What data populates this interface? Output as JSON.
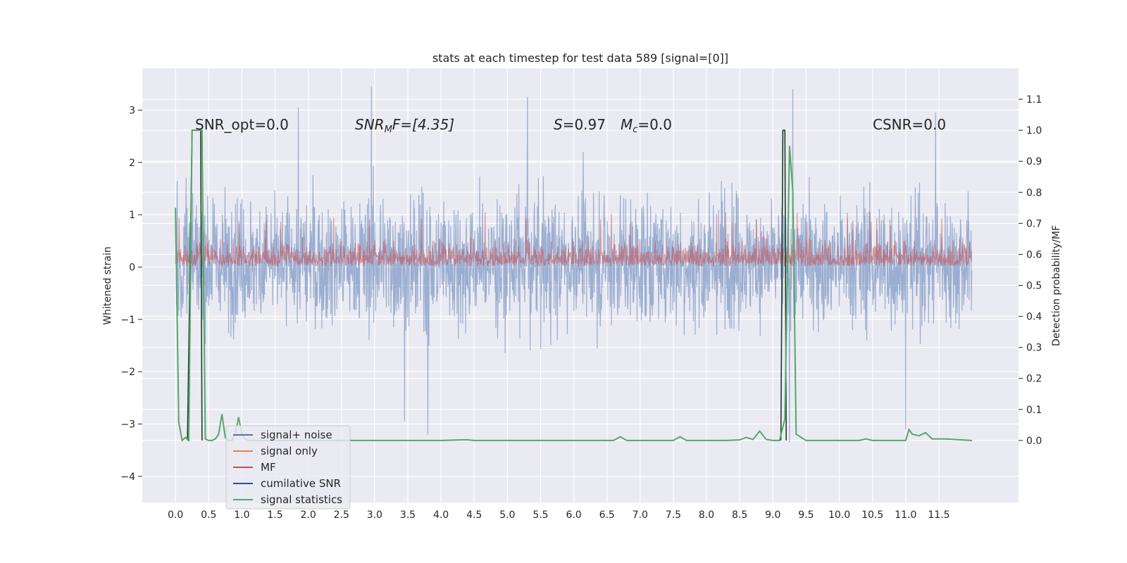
{
  "chart_data": {
    "type": "line",
    "title": "stats at each timestep for test data 589 [signal=[0]]",
    "xlabel": "",
    "ylabel": "Whitened strain",
    "ylabel_right": "Detection probability/MF",
    "xlim": [
      -0.5,
      12.7
    ],
    "ylim": [
      -4.5,
      3.8
    ],
    "ylim_right": [
      -0.2,
      1.2
    ],
    "x_ticks": [
      "0.0",
      "0.5",
      "1.0",
      "1.5",
      "2.0",
      "2.5",
      "3.0",
      "3.5",
      "4.0",
      "4.5",
      "5.0",
      "5.5",
      "6.0",
      "6.5",
      "7.0",
      "7.5",
      "8.0",
      "8.5",
      "9.0",
      "9.5",
      "10.0",
      "10.5",
      "11.0",
      "11.5"
    ],
    "y_ticks": [
      "3",
      "2",
      "1",
      "0",
      "−1",
      "−2",
      "−3",
      "−4"
    ],
    "y_ticks_right": [
      "1.1",
      "1.0",
      "0.9",
      "0.8",
      "0.7",
      "0.6",
      "0.5",
      "0.4",
      "0.3",
      "0.2",
      "0.1",
      "0.0"
    ],
    "grid": true,
    "legend_position": "lower-left",
    "annotations": {
      "snr_opt": "SNR_opt=0.0",
      "snr_mf_base": "SNR",
      "snr_mf_sub": "M",
      "snr_mf_rest": "F=[4.35]",
      "s_label": "S",
      "s_value": "=0.97",
      "mc_label": "M",
      "mc_sub": "c",
      "mc_value": "=0.0",
      "csnr": "CSNR=0.0"
    },
    "legend": [
      {
        "label": "signal+ noise",
        "color": "#4c72b0"
      },
      {
        "label": "signal only",
        "color": "#dd8452"
      },
      {
        "label": "MF",
        "color": "#c44e52"
      },
      {
        "label": "cumilative SNR",
        "color": "#2b4f9a"
      },
      {
        "label": "signal statistics",
        "color": "#55a868"
      }
    ],
    "series": [
      {
        "name": "signal+ noise",
        "axis": "left",
        "description": "dense noise trace between about -3.3 and 3.4",
        "x_range": [
          0.0,
          12.0
        ],
        "envelope_upper": 2.2,
        "envelope_lower": -1.9,
        "peaks": [
          {
            "x": 2.95,
            "y": 3.45
          },
          {
            "x": 9.3,
            "y": 3.4
          },
          {
            "x": 5.3,
            "y": 3.25
          },
          {
            "x": 1.85,
            "y": 3.05
          },
          {
            "x": 11.45,
            "y": 2.95
          },
          {
            "x": 9.25,
            "y": -3.35
          },
          {
            "x": 3.8,
            "y": -3.2
          },
          {
            "x": 11.0,
            "y": -3.1
          },
          {
            "x": 3.45,
            "y": -2.95
          }
        ]
      },
      {
        "name": "MF",
        "axis": "left",
        "description": "positive band from 0 to about 1",
        "x_range": [
          0.0,
          12.0
        ],
        "envelope_upper": 0.75,
        "peak": 1.05
      },
      {
        "name": "signal statistics",
        "axis": "right",
        "x": [
          0.0,
          0.05,
          0.1,
          0.15,
          0.2,
          0.25,
          0.3,
          0.35,
          0.4,
          0.45,
          0.5,
          0.55,
          0.6,
          0.65,
          0.7,
          0.75,
          0.8,
          0.85,
          0.9,
          0.95,
          1.0,
          1.05,
          1.1,
          1.2,
          1.4,
          1.6,
          1.8,
          2.0,
          2.5,
          3.0,
          3.5,
          4.0,
          4.3,
          4.4,
          4.5,
          5.0,
          5.5,
          6.0,
          6.5,
          6.6,
          6.7,
          6.8,
          7.0,
          7.5,
          7.6,
          7.7,
          8.0,
          8.3,
          8.5,
          8.6,
          8.7,
          8.8,
          8.9,
          9.0,
          9.1,
          9.18,
          9.25,
          9.3,
          9.35,
          9.5,
          10.0,
          10.3,
          10.4,
          10.5,
          11.0,
          11.05,
          11.1,
          11.2,
          11.3,
          11.4,
          11.6,
          12.0
        ],
        "y": [
          0.75,
          0.06,
          0.0,
          0.01,
          0.0,
          1.0,
          1.0,
          1.0,
          1.0,
          0.005,
          0.0,
          0.0,
          0.005,
          0.02,
          0.085,
          0.01,
          0.0,
          0.0,
          0.02,
          0.075,
          0.02,
          0.005,
          0.0,
          0.0,
          0.0,
          0.0,
          0.0,
          0.0,
          0.0,
          0.0,
          0.0,
          0.0,
          0.002,
          0.002,
          0.0,
          0.0,
          0.0,
          0.0,
          0.0,
          0.0,
          0.012,
          0.0,
          0.0,
          0.0,
          0.012,
          0.0,
          0.0,
          0.0,
          0.002,
          0.01,
          0.003,
          0.03,
          0.003,
          0.0,
          0.0,
          0.07,
          0.95,
          0.8,
          0.02,
          0.0,
          0.0,
          0.0,
          0.005,
          0.0,
          0.0,
          0.035,
          0.02,
          0.015,
          0.025,
          0.005,
          0.005,
          0.0
        ]
      },
      {
        "name": "cumilative SNR",
        "axis": "right",
        "description": "vertical step transitions between 0 and 1",
        "x": [
          0.18,
          0.25,
          0.38,
          0.4,
          9.12,
          9.15,
          9.18,
          9.2
        ],
        "y": [
          0.0,
          1.0,
          1.0,
          0.0,
          0.0,
          1.0,
          1.0,
          0.0
        ]
      }
    ]
  }
}
